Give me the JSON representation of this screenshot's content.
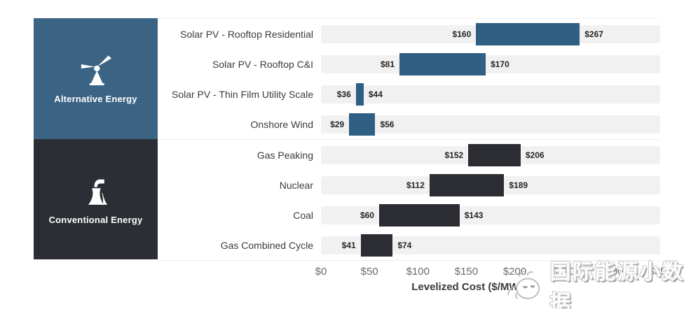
{
  "colors": {
    "alt_panel": "#3b6384",
    "alt_bar": "#2f5f82",
    "conv_panel": "#2b2e34",
    "conv_bar": "#2b2d33",
    "track": "#f1f1f1"
  },
  "sidebar": {
    "groups": [
      {
        "label": "Alternative Energy",
        "icon": "wind-turbine-icon",
        "color": "#3b6384"
      },
      {
        "label": "Conventional Energy",
        "icon": "power-plant-icon",
        "color": "#2b2e34"
      }
    ]
  },
  "chart_data": {
    "type": "bar",
    "subtype": "horizontal-range",
    "title": "",
    "xlabel": "Levelized Cost ($/MWh)",
    "ylabel": "",
    "xlim": [
      0,
      350
    ],
    "grid": false,
    "x_ticks": [
      "$0",
      "$50",
      "$100",
      "$150",
      "$200",
      "$250",
      "$300",
      "$350"
    ],
    "x_tick_values": [
      0,
      50,
      100,
      150,
      200,
      250,
      300,
      350
    ],
    "groups": [
      {
        "name": "Alternative Energy",
        "bar_color": "#2f5f82",
        "rows": [
          {
            "label": "Solar PV - Rooftop Residential",
            "min": 160,
            "max": 267,
            "min_label": "$160",
            "max_label": "$267"
          },
          {
            "label": "Solar PV - Rooftop C&I",
            "min": 81,
            "max": 170,
            "min_label": "$81",
            "max_label": "$170"
          },
          {
            "label": "Solar PV - Thin Film Utility Scale",
            "min": 36,
            "max": 44,
            "min_label": "$36",
            "max_label": "$44"
          },
          {
            "label": "Onshore Wind",
            "min": 29,
            "max": 56,
            "min_label": "$29",
            "max_label": "$56"
          }
        ]
      },
      {
        "name": "Conventional Energy",
        "bar_color": "#2b2d33",
        "rows": [
          {
            "label": "Gas Peaking",
            "min": 152,
            "max": 206,
            "min_label": "$152",
            "max_label": "$206"
          },
          {
            "label": "Nuclear",
            "min": 112,
            "max": 189,
            "min_label": "$112",
            "max_label": "$189"
          },
          {
            "label": "Coal",
            "min": 60,
            "max": 143,
            "min_label": "$60",
            "max_label": "$143"
          },
          {
            "label": "Gas Combined Cycle",
            "min": 41,
            "max": 74,
            "min_label": "$41",
            "max_label": "$74"
          }
        ]
      }
    ]
  },
  "watermark": {
    "text": "国际能源小数据",
    "icon": "cartoon-bird-logo-icon"
  }
}
